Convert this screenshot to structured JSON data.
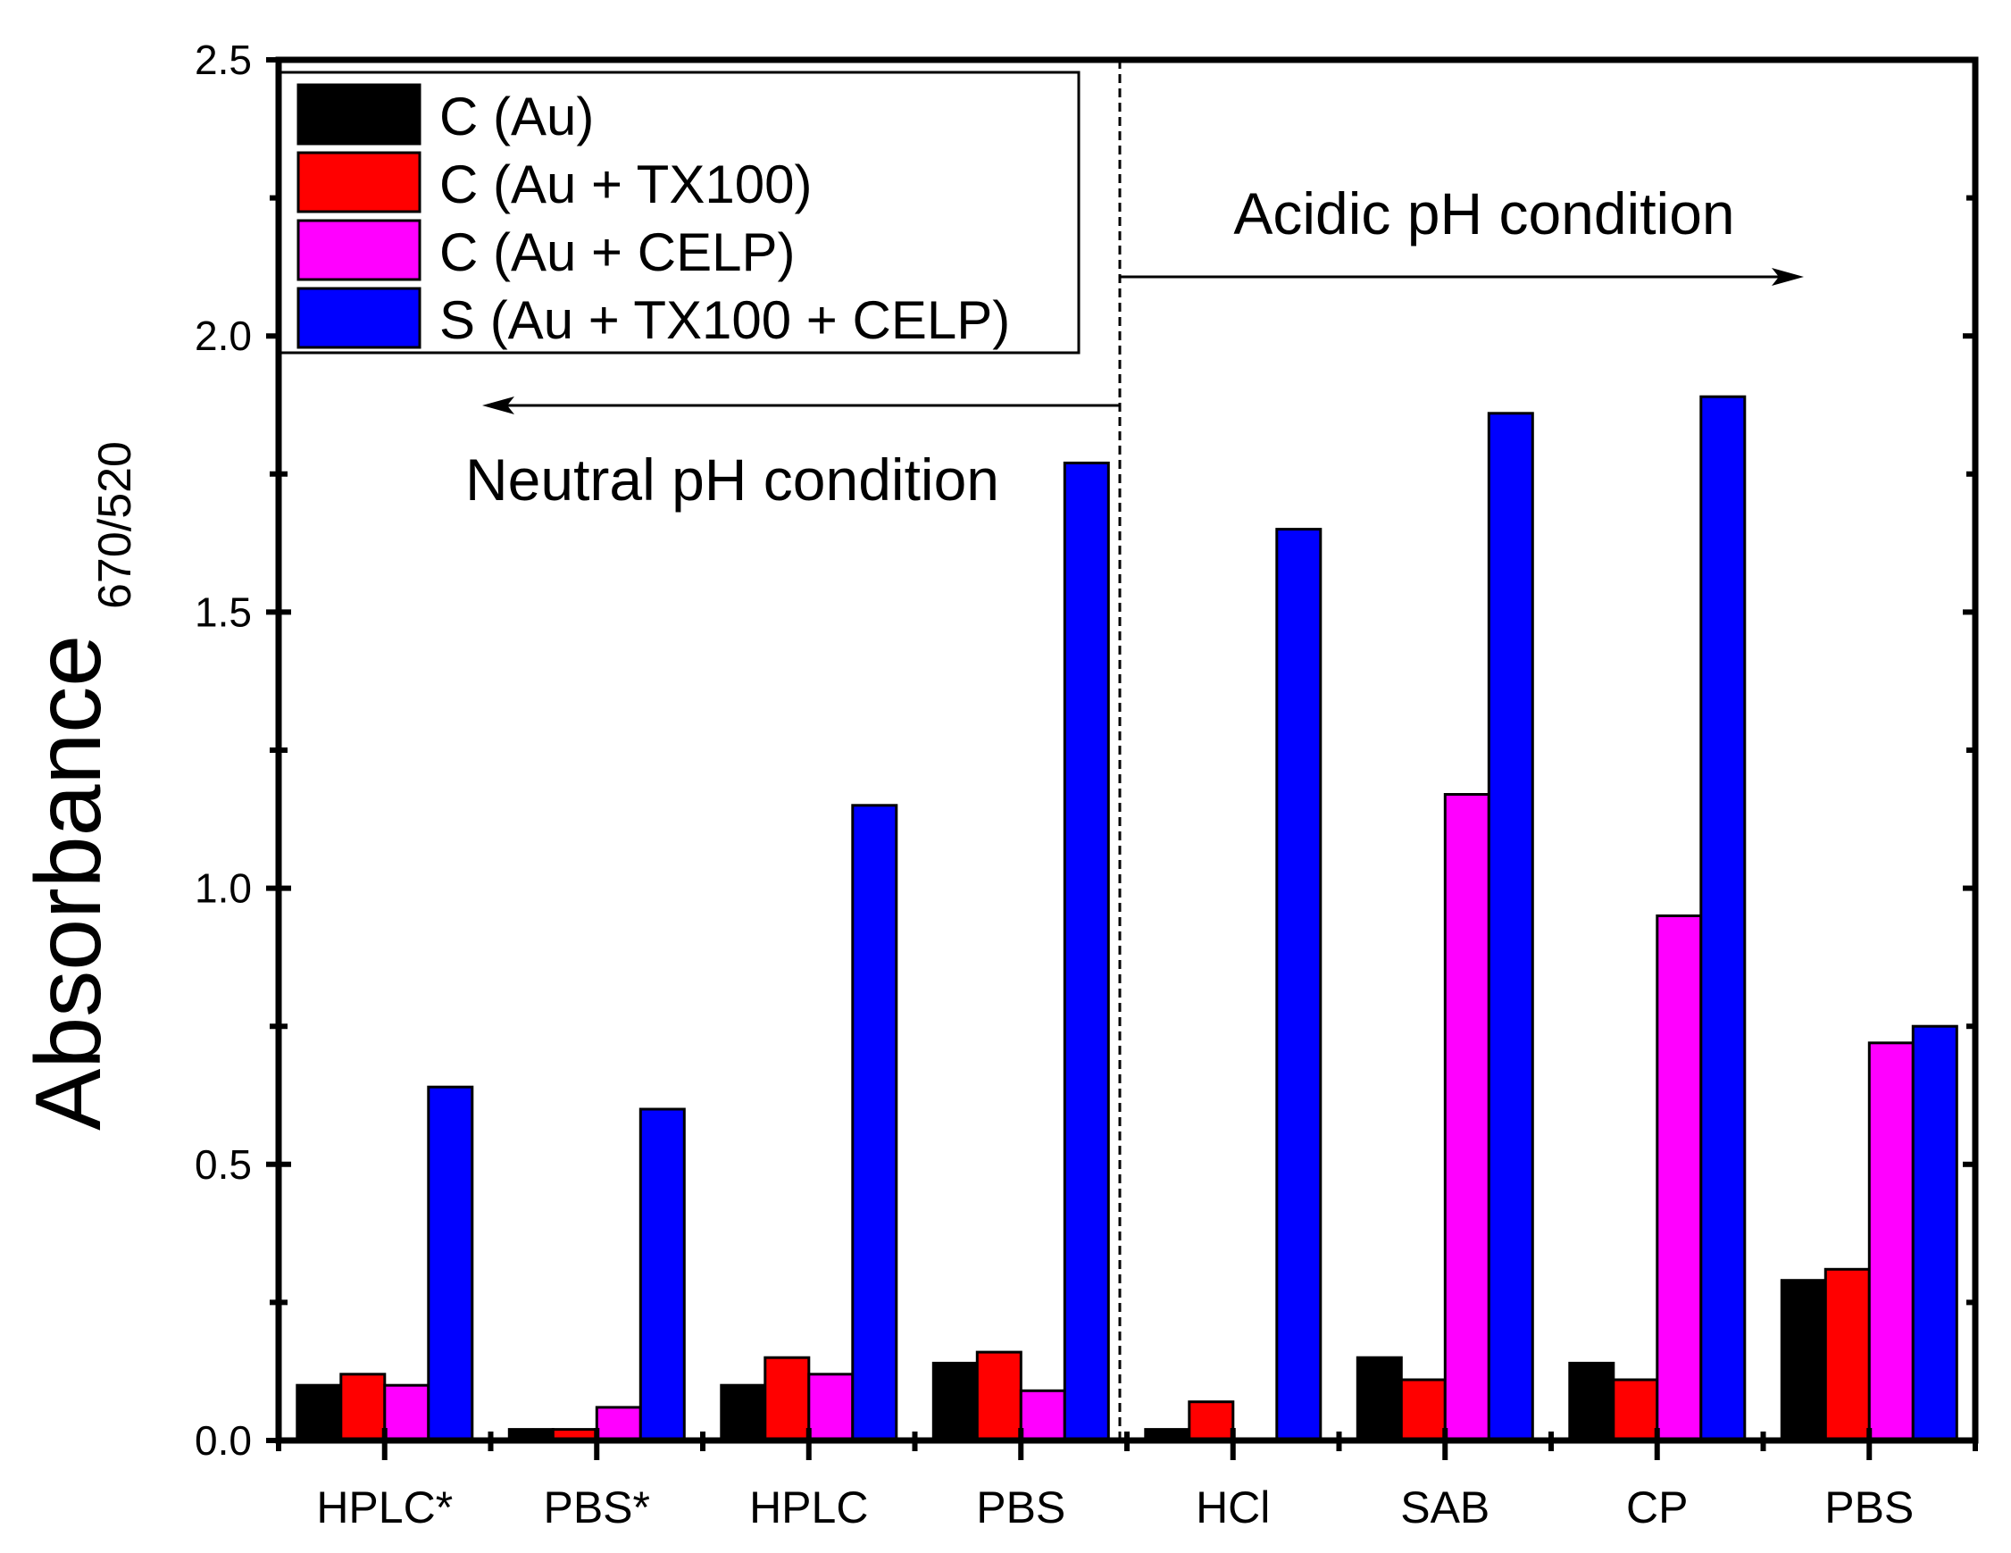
{
  "chart_data": {
    "type": "bar",
    "xlabel": "",
    "ylabel": "Absorbance",
    "ylabel_subscript": "670/520",
    "ylim": [
      0,
      2.5
    ],
    "yticks": [
      "0.0",
      "0.5",
      "1.0",
      "1.5",
      "2.0",
      "2.5"
    ],
    "categories": [
      "HPLC*",
      "PBS*",
      "HPLC",
      "PBS",
      "HCl",
      "SAB",
      "CP",
      "PBS"
    ],
    "series": [
      {
        "name": "C (Au)",
        "color": "#000000",
        "values": [
          0.1,
          0.02,
          0.1,
          0.14,
          0.02,
          0.15,
          0.14,
          0.29
        ]
      },
      {
        "name": "C (Au + TX100)",
        "color": "#ff0000",
        "values": [
          0.12,
          0.02,
          0.15,
          0.16,
          0.07,
          0.11,
          0.11,
          0.31
        ]
      },
      {
        "name": "C (Au + CELP)",
        "color": "#ff00ff",
        "values": [
          0.1,
          0.06,
          0.12,
          0.09,
          0.0,
          1.17,
          0.95,
          0.72
        ]
      },
      {
        "name": "S (Au + TX100 + CELP)",
        "color": "#0000ff",
        "values": [
          0.64,
          0.6,
          1.15,
          1.77,
          1.65,
          1.86,
          1.89,
          0.75
        ]
      }
    ],
    "grid": false,
    "legend_position": "top-left",
    "annotations": {
      "neutral": "Neutral pH condition",
      "acidic": "Acidic pH condition"
    }
  }
}
